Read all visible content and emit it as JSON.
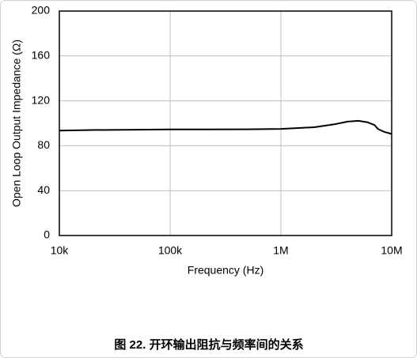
{
  "chart_data": {
    "type": "line",
    "caption": "图 22. 开环输出阻抗与频率间的关系",
    "xlabel": "Frequency (Hz)",
    "ylabel": "Open Loop Output Impedance (Ω)",
    "xscale": "log",
    "grid": true,
    "xlim": [
      10000,
      10000000
    ],
    "xticks": [
      {
        "value": 10000,
        "label": "10k"
      },
      {
        "value": 100000,
        "label": "100k"
      },
      {
        "value": 1000000,
        "label": "1M"
      },
      {
        "value": 10000000,
        "label": "10M"
      }
    ],
    "ylim": [
      0,
      200
    ],
    "yticks": [
      0,
      40,
      80,
      120,
      160,
      200
    ],
    "x": [
      10000,
      20000,
      50000,
      100000,
      200000,
      500000,
      1000000,
      2000000,
      3000000,
      4000000,
      5000000,
      6000000,
      7000000,
      7500000,
      8500000,
      10000000
    ],
    "series": [
      {
        "color": "#000000",
        "values": [
          93.5,
          94,
          94.3,
          94.5,
          94.5,
          94.6,
          95,
          96.5,
          99,
          101.5,
          102.2,
          101,
          98.5,
          95,
          92.5,
          90.5
        ]
      }
    ]
  }
}
